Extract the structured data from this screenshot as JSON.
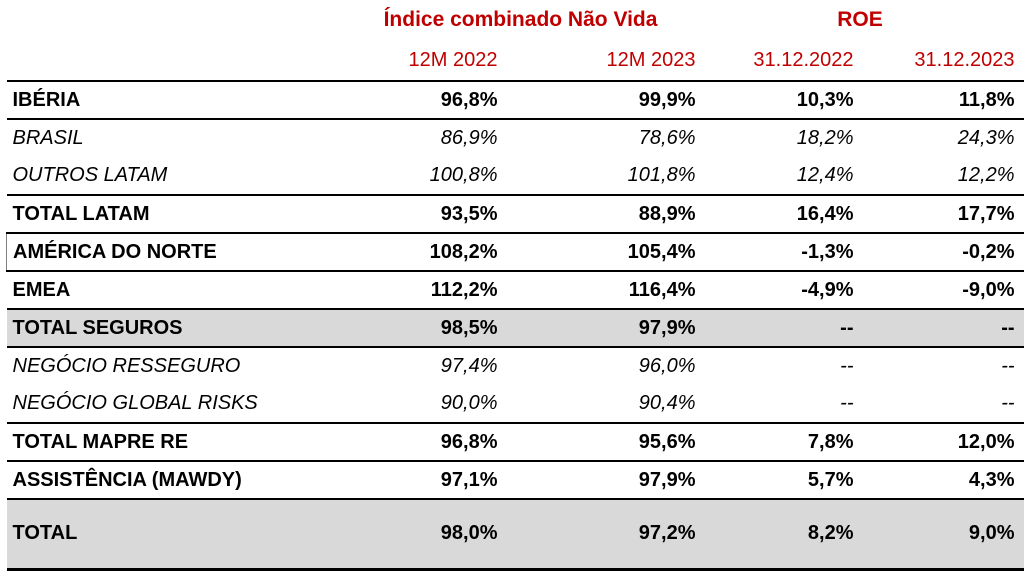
{
  "chart_data": {
    "type": "table",
    "group_headers": [
      {
        "label": "Índice combinado Não Vida",
        "span": 2
      },
      {
        "label": "ROE",
        "span": 2
      }
    ],
    "columns": [
      "12M 2022",
      "12M 2023",
      "31.12.2022",
      "31.12.2023"
    ],
    "rows": [
      {
        "label": "IBÉRIA",
        "style": "bold",
        "shaded": false,
        "tall": false,
        "rule": true,
        "outlined": false,
        "values": [
          "96,8%",
          "99,9%",
          "10,3%",
          "11,8%"
        ]
      },
      {
        "label": "BRASIL",
        "style": "italic",
        "shaded": false,
        "tall": false,
        "rule": false,
        "outlined": false,
        "values": [
          "86,9%",
          "78,6%",
          "18,2%",
          "24,3%"
        ]
      },
      {
        "label": "OUTROS LATAM",
        "style": "italic",
        "shaded": false,
        "tall": false,
        "rule": true,
        "outlined": false,
        "values": [
          "100,8%",
          "101,8%",
          "12,4%",
          "12,2%"
        ]
      },
      {
        "label": "TOTAL LATAM",
        "style": "bold",
        "shaded": false,
        "tall": false,
        "rule": true,
        "outlined": false,
        "values": [
          "93,5%",
          "88,9%",
          "16,4%",
          "17,7%"
        ]
      },
      {
        "label": "AMÉRICA DO NORTE",
        "style": "bold",
        "shaded": false,
        "tall": false,
        "rule": true,
        "outlined": true,
        "values": [
          "108,2%",
          "105,4%",
          "-1,3%",
          "-0,2%"
        ]
      },
      {
        "label": "EMEA",
        "style": "bold",
        "shaded": false,
        "tall": false,
        "rule": true,
        "outlined": false,
        "values": [
          "112,2%",
          "116,4%",
          "-4,9%",
          "-9,0%"
        ]
      },
      {
        "label": "TOTAL SEGUROS",
        "style": "bold",
        "shaded": true,
        "tall": false,
        "rule": true,
        "outlined": false,
        "values": [
          "98,5%",
          "97,9%",
          "--",
          "--"
        ]
      },
      {
        "label": "NEGÓCIO RESSEGURO",
        "style": "italic",
        "shaded": false,
        "tall": false,
        "rule": false,
        "outlined": false,
        "values": [
          "97,4%",
          "96,0%",
          "--",
          "--"
        ]
      },
      {
        "label": "NEGÓCIO GLOBAL RISKS",
        "style": "italic",
        "shaded": false,
        "tall": false,
        "rule": true,
        "outlined": false,
        "values": [
          "90,0%",
          "90,4%",
          "--",
          "--"
        ]
      },
      {
        "label": "TOTAL MAPRE RE",
        "style": "bold",
        "shaded": false,
        "tall": false,
        "rule": true,
        "outlined": false,
        "values": [
          "96,8%",
          "95,6%",
          "7,8%",
          "12,0%"
        ]
      },
      {
        "label": "ASSISTÊNCIA (MAWDY)",
        "style": "bold",
        "shaded": false,
        "tall": false,
        "rule": true,
        "outlined": false,
        "values": [
          "97,1%",
          "97,9%",
          "5,7%",
          "4,3%"
        ]
      },
      {
        "label": "TOTAL",
        "style": "bold",
        "shaded": true,
        "tall": true,
        "rule": false,
        "outlined": false,
        "thick_rule": true,
        "values": [
          "98,0%",
          "97,2%",
          "8,2%",
          "9,0%"
        ]
      }
    ]
  },
  "colors": {
    "header_text": "#C00000",
    "shaded_row_background": "#D9D9D9",
    "body_text": "#000000",
    "rule_lines": "#000000"
  }
}
